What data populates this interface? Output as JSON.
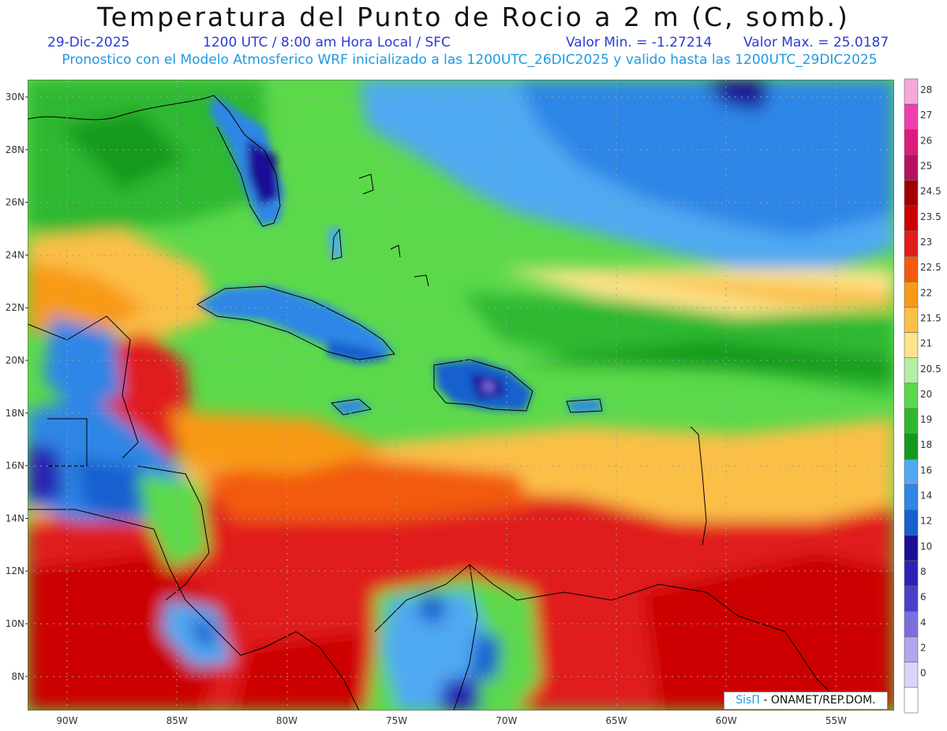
{
  "header": {
    "title": "Temperatura del Punto de Rocio a 2 m (C, somb.)",
    "date": "29-Dic-2025",
    "time": "1200 UTC / 8:00 am Hora Local / SFC",
    "min_label": "Valor Min. = -1.27214",
    "max_label": "Valor Max. = 25.0187",
    "model_line": "Pronostico con el Modelo Atmosferico WRF inicializado a las 1200UTC_26DIC2025 y valido hasta las  1200UTC_29DIC2025"
  },
  "map": {
    "lat_labels": [
      "30N",
      "28N",
      "26N",
      "24N",
      "22N",
      "20N",
      "18N",
      "16N",
      "14N",
      "12N",
      "10N",
      "8N"
    ],
    "lon_labels": [
      "90W",
      "85W",
      "80W",
      "75W",
      "70W",
      "65W",
      "60W",
      "55W"
    ],
    "grid": true
  },
  "colorbar": {
    "labels": [
      "28",
      "27",
      "26",
      "25",
      "24.5",
      "23.5",
      "23",
      "22.5",
      "22",
      "21.5",
      "21",
      "20.5",
      "20",
      "19",
      "18",
      "16",
      "14",
      "12",
      "10",
      "8",
      "6",
      "4",
      "2",
      "0"
    ],
    "colors": [
      "#f6a9d6",
      "#ef3fae",
      "#e0197e",
      "#b5135d",
      "#a00000",
      "#cc0000",
      "#e01d1d",
      "#f25a0d",
      "#f89a18",
      "#fbbf47",
      "#fde48a",
      "#b4f0a4",
      "#5cd94b",
      "#2eb830",
      "#129a1c",
      "#50a9f2",
      "#2e86e6",
      "#1660cf",
      "#1e0f98",
      "#2b22b4",
      "#4a3ecb",
      "#7b6fe0",
      "#b0a6f0",
      "#d9d6fb",
      "#ffffff"
    ]
  },
  "credit": {
    "brand": "SisΠ",
    "text": "- ONAMET/REP.DOM."
  }
}
